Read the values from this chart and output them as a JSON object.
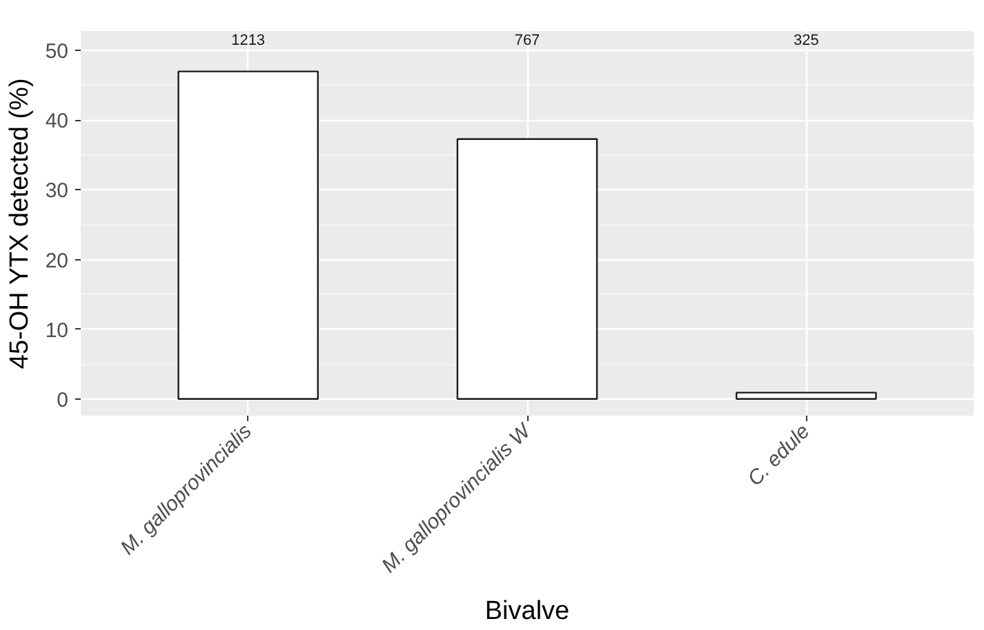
{
  "chart_data": {
    "type": "bar",
    "xlabel": "Bivalve",
    "ylabel": "45-OH YTX detected (%)",
    "categories": [
      "M. galloprovincialis",
      "M. galloprovincialis W",
      "C. edule"
    ],
    "values": [
      47.0,
      37.3,
      0.9
    ],
    "color": "#ffffff",
    "ylim": [
      -2.4,
      52.8
    ],
    "yticks": [
      0,
      10,
      20,
      30,
      40,
      50
    ],
    "grid": true,
    "annotations": [
      "1213",
      "767",
      "325"
    ]
  }
}
